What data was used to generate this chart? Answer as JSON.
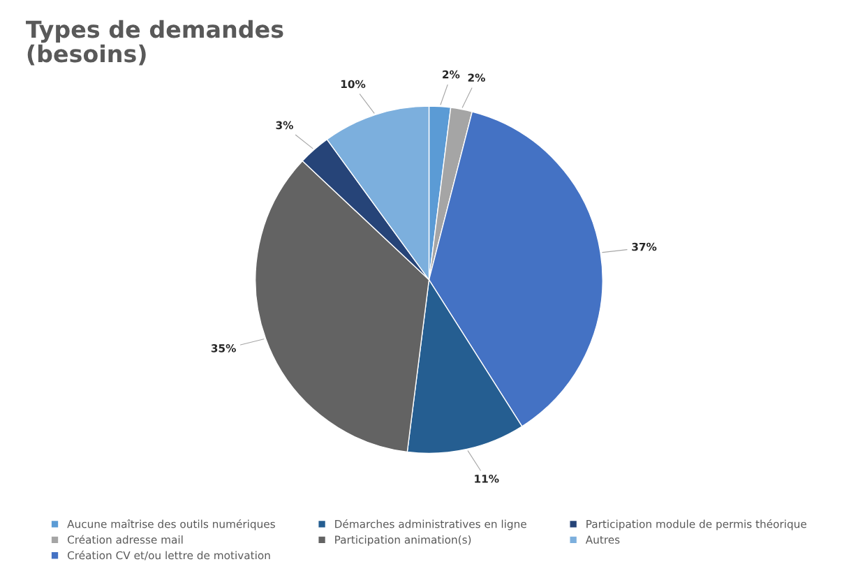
{
  "chart_data": {
    "type": "pie",
    "title": "Types de demandes\n(besoins)",
    "categories": [
      "Aucune maîtrise des outils numériques",
      "Création adresse mail",
      "Création CV et/ou lettre de motivation",
      "Démarches administratives en ligne",
      "Participation animation(s)",
      "Participation module de permis théorique",
      "Autres"
    ],
    "values": [
      2,
      2,
      37,
      11,
      35,
      3,
      10
    ],
    "colors": [
      "#5b9bd5",
      "#a5a5a5",
      "#4472c4",
      "#255e91",
      "#636363",
      "#264478",
      "#7cafdd"
    ],
    "value_labels": [
      "2%",
      "2%",
      "37%",
      "11%",
      "35%",
      "3%",
      "10%"
    ],
    "legend": "bottom"
  }
}
